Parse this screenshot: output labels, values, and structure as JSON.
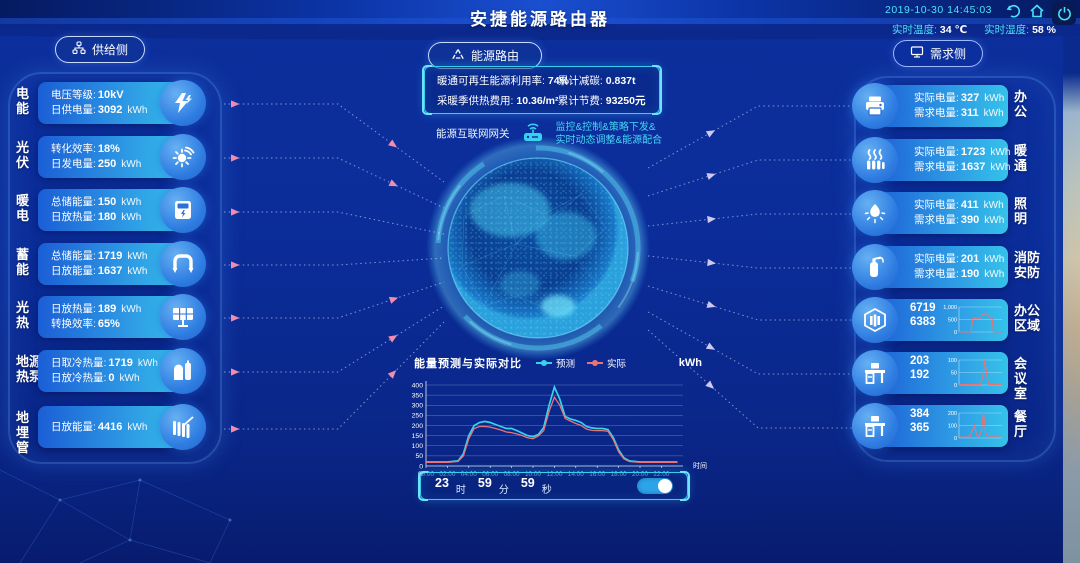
{
  "header": {
    "title": "安捷能源路由器",
    "datetime": "2019-10-30 14:45:03",
    "temp_label": "实时温度:",
    "temp_value": "34 ℃",
    "humidity_label": "实时湿度:",
    "humidity_value": "58 %"
  },
  "supply": {
    "button_label": "供给侧",
    "items": [
      {
        "category": "电能",
        "icon": "lightning-icon",
        "lines": [
          {
            "label": "电压等级:",
            "value": "10kV",
            "unit": ""
          },
          {
            "label": "日供电量:",
            "value": "3092",
            "unit": "kWh"
          }
        ]
      },
      {
        "category": "光伏",
        "icon": "sun-icon",
        "lines": [
          {
            "label": "转化效率:",
            "value": "18%",
            "unit": ""
          },
          {
            "label": "日发电量:",
            "value": "250",
            "unit": "kWh"
          }
        ]
      },
      {
        "category": "暖电",
        "icon": "meter-icon",
        "lines": [
          {
            "label": "总储能量:",
            "value": "150",
            "unit": "kWh"
          },
          {
            "label": "日放热量:",
            "value": "180",
            "unit": "kWh"
          }
        ]
      },
      {
        "category": "蓄能",
        "icon": "pipe-icon",
        "lines": [
          {
            "label": "总储能量:",
            "value": "1719",
            "unit": "kWh"
          },
          {
            "label": "日放能量:",
            "value": "1637",
            "unit": "kWh"
          }
        ]
      },
      {
        "category": "光热",
        "icon": "solar-panel-icon",
        "lines": [
          {
            "label": "日放热量:",
            "value": "189",
            "unit": "kWh"
          },
          {
            "label": "转换效率:",
            "value": "65%",
            "unit": ""
          }
        ]
      },
      {
        "category": "地源热泵",
        "icon": "heat-pump-icon",
        "lines": [
          {
            "label": "日取冷热量:",
            "value": "1719",
            "unit": "kWh"
          },
          {
            "label": "日放冷热量:",
            "value": "0",
            "unit": "kWh"
          }
        ]
      },
      {
        "category": "地埋管",
        "icon": "radiator-icon",
        "lines": [
          {
            "label": "日放能量:",
            "value": "4416",
            "unit": "kWh"
          }
        ]
      }
    ]
  },
  "demand": {
    "button_label": "需求侧",
    "items": [
      {
        "category": "办公",
        "icon": "printer-icon",
        "lines": [
          {
            "label": "实际电量:",
            "value": "327",
            "unit": "kWh"
          },
          {
            "label": "需求电量:",
            "value": "311",
            "unit": "kWh"
          }
        ]
      },
      {
        "category": "暖通",
        "icon": "heater-icon",
        "lines": [
          {
            "label": "实际电量:",
            "value": "1723",
            "unit": "kWh"
          },
          {
            "label": "需求电量:",
            "value": "1637",
            "unit": "kWh"
          }
        ]
      },
      {
        "category": "照明",
        "icon": "bulb-icon",
        "lines": [
          {
            "label": "实际电量:",
            "value": "411",
            "unit": "kWh"
          },
          {
            "label": "需求电量:",
            "value": "390",
            "unit": "kWh"
          }
        ]
      },
      {
        "category": "消防安防",
        "icon": "fire-extinguisher-icon",
        "lines": [
          {
            "label": "实际电量:",
            "value": "201",
            "unit": "kWh"
          },
          {
            "label": "需求电量:",
            "value": "190",
            "unit": "kWh"
          }
        ]
      },
      {
        "category": "办公区域",
        "icon": "building-icon",
        "values": [
          "6719",
          "6383"
        ],
        "mini_index": 0
      },
      {
        "category": "会议室",
        "icon": "desk-icon",
        "values": [
          "203",
          "192"
        ],
        "mini_index": 1
      },
      {
        "category": "餐厅",
        "icon": "desk-icon",
        "values": [
          "384",
          "365"
        ],
        "mini_index": 2
      }
    ]
  },
  "center": {
    "router_button_label": "能源路由",
    "stats": [
      {
        "label": "暖通可再生能源利用率:",
        "value": "74%"
      },
      {
        "label": "累计减碳:",
        "value": "0.837t"
      },
      {
        "label": "采暖季供热费用:",
        "value": "10.36/m²"
      },
      {
        "label": "累计节费:",
        "value": "93250元"
      }
    ],
    "gateway_label": "能源互联网网关",
    "gateway_desc_line1": "监控&控制&策略下发&",
    "gateway_desc_line2": "实时动态调整&能源配合"
  },
  "time_control": {
    "hour": "23",
    "hour_unit": "时",
    "minute": "59",
    "minute_unit": "分",
    "second": "59",
    "second_unit": "秒",
    "toggle_on": true
  },
  "colors": {
    "accent_cyan": "#45d8f5",
    "forecast": "#38d2ea",
    "actual": "#e87474",
    "arrow_pink": "#f28cae",
    "arrow_lavender": "#cfc8f2",
    "card_gradient_start": "#1b5ed6",
    "card_gradient_end": "#35c2ea"
  },
  "chart_data": {
    "main": {
      "type": "line",
      "title": "能量预测与实际对比",
      "unit_label": "kWh",
      "xlabel": "时间",
      "x_ticks": [
        "00:00",
        "02:00",
        "04:00",
        "06:00",
        "08:00",
        "10:00",
        "12:00",
        "14:00",
        "16:00",
        "18:00",
        "20:00",
        "22:00"
      ],
      "ylim": [
        0,
        400
      ],
      "y_ticks": [
        0,
        50,
        100,
        150,
        200,
        250,
        300,
        350,
        400
      ],
      "x_hours": [
        0,
        1,
        2,
        3,
        3.5,
        4,
        4.5,
        5,
        5.5,
        6,
        6.5,
        7,
        7.5,
        8,
        8.5,
        9,
        9.5,
        10,
        10.5,
        11,
        11.5,
        12,
        12.5,
        13,
        13.5,
        14,
        14.5,
        15,
        15.5,
        16,
        16.5,
        17,
        17.5,
        18,
        18.5,
        19,
        20,
        21,
        22,
        23.5
      ],
      "series": [
        {
          "name": "预测",
          "values": [
            20,
            20,
            20,
            25,
            60,
            150,
            200,
            215,
            220,
            215,
            205,
            195,
            185,
            185,
            175,
            162,
            150,
            145,
            155,
            190,
            300,
            390,
            330,
            245,
            232,
            225,
            215,
            195,
            188,
            185,
            185,
            180,
            140,
            80,
            40,
            25,
            20,
            20,
            20,
            20
          ]
        },
        {
          "name": "实际",
          "values": [
            18,
            18,
            18,
            22,
            50,
            135,
            185,
            195,
            195,
            192,
            185,
            178,
            168,
            165,
            158,
            150,
            140,
            135,
            148,
            175,
            270,
            340,
            300,
            235,
            222,
            210,
            200,
            182,
            176,
            175,
            175,
            172,
            130,
            70,
            35,
            22,
            18,
            18,
            18,
            18
          ]
        }
      ],
      "legend_position": "top",
      "grid": true
    },
    "mini": [
      {
        "type": "line",
        "name": "办公区域",
        "ylim": [
          0,
          1000
        ],
        "yticks": [
          "1,000",
          "500",
          "0"
        ],
        "points": [
          [
            0,
            5
          ],
          [
            0.28,
            5
          ],
          [
            0.32,
            540
          ],
          [
            0.5,
            560
          ],
          [
            0.55,
            730
          ],
          [
            0.66,
            720
          ],
          [
            0.72,
            560
          ],
          [
            0.77,
            550
          ],
          [
            0.8,
            10
          ],
          [
            1,
            5
          ]
        ]
      },
      {
        "type": "line",
        "name": "会议室",
        "ylim": [
          0,
          100
        ],
        "yticks": [
          "100",
          "50",
          "0"
        ],
        "points": [
          [
            0,
            2
          ],
          [
            0.5,
            2
          ],
          [
            0.56,
            40
          ],
          [
            0.6,
            100
          ],
          [
            0.65,
            35
          ],
          [
            0.69,
            2
          ],
          [
            1,
            2
          ]
        ]
      },
      {
        "type": "line",
        "name": "餐厅",
        "ylim": [
          0,
          200
        ],
        "yticks": [
          "200",
          "100",
          "0"
        ],
        "points": [
          [
            0,
            8
          ],
          [
            0.25,
            8
          ],
          [
            0.31,
            60
          ],
          [
            0.36,
            100
          ],
          [
            0.41,
            25
          ],
          [
            0.47,
            10
          ],
          [
            0.52,
            60
          ],
          [
            0.57,
            200
          ],
          [
            0.62,
            40
          ],
          [
            0.67,
            10
          ],
          [
            1,
            8
          ]
        ]
      }
    ]
  }
}
